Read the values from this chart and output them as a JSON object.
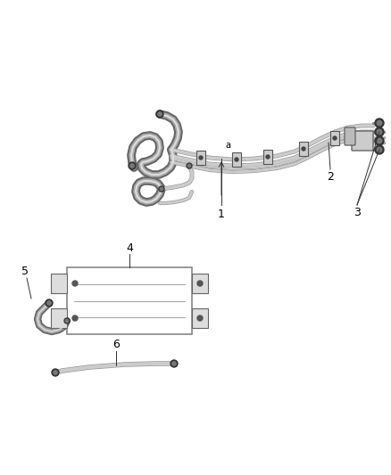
{
  "background_color": "#ffffff",
  "line_color": "#888888",
  "dark_color": "#444444",
  "black_color": "#000000",
  "figsize": [
    4.38,
    5.33
  ],
  "dpi": 100,
  "label_fontsize": 9,
  "tube_gray": "#999999",
  "tube_light": "#cccccc",
  "tube_dark": "#555555",
  "fitting_dark": "#333333",
  "fitting_mid": "#777777"
}
